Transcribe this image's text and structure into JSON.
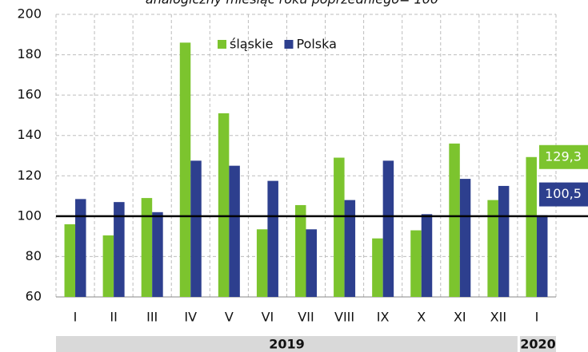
{
  "chart_data": {
    "type": "bar",
    "title": "analogiczny miesiąc roku poprzedniego= 100",
    "categories": [
      "I",
      "II",
      "III",
      "IV",
      "V",
      "VI",
      "VII",
      "VIII",
      "IX",
      "X",
      "XI",
      "XII",
      "I"
    ],
    "years": [
      "2019",
      "2020"
    ],
    "series": [
      {
        "name": "śląskie",
        "color": "#7cc42e",
        "values": [
          96,
          90.5,
          109,
          186,
          151,
          93.5,
          105.5,
          129,
          89,
          93,
          136,
          108,
          129.3
        ],
        "value_labels": [
          null,
          null,
          null,
          null,
          null,
          null,
          null,
          null,
          null,
          null,
          null,
          null,
          "129,3"
        ]
      },
      {
        "name": "Polska",
        "color": "#2d3f8e",
        "values": [
          108.5,
          107,
          102,
          127.5,
          125,
          117.5,
          93.5,
          108,
          127.5,
          101,
          118.5,
          115,
          100.5
        ],
        "value_labels": [
          null,
          null,
          null,
          null,
          null,
          null,
          null,
          null,
          null,
          null,
          null,
          null,
          "100,5"
        ]
      }
    ],
    "ylim": [
      60,
      200
    ],
    "yticks": [
      60,
      80,
      100,
      120,
      140,
      160,
      180,
      200
    ],
    "hline": 100,
    "grid": true,
    "legend": "top"
  }
}
